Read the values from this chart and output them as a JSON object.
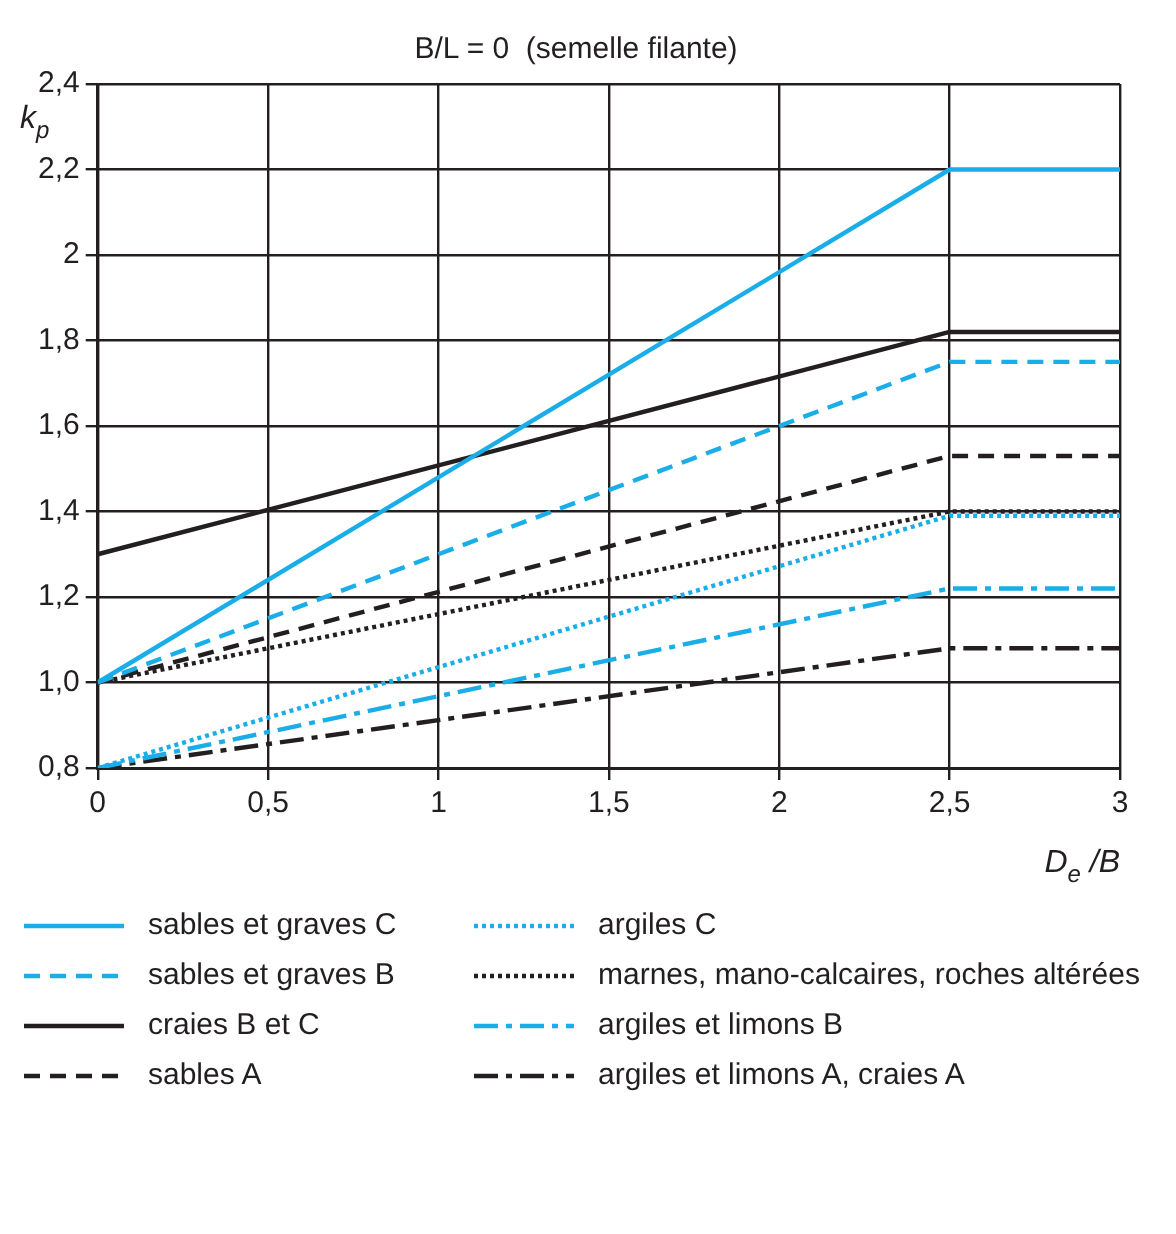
{
  "chart_data": {
    "type": "line",
    "title": "B/L = 0  (semelle filante)",
    "xlabel": "D$_{e}$ /B",
    "ylabel": "k$_{p}$",
    "x": [
      0,
      2.5,
      3
    ],
    "series": [
      {
        "name": "sables et graves C",
        "color": "#1aaee8",
        "line_style": "solid",
        "values": [
          1.0,
          2.2,
          2.2
        ]
      },
      {
        "name": "argiles C",
        "color": "#1aaee8",
        "line_style": "dotted",
        "values": [
          0.8,
          1.39,
          1.39
        ]
      },
      {
        "name": "sables et graves B",
        "color": "#1aaee8",
        "line_style": "dashed",
        "values": [
          1.0,
          1.75,
          1.75
        ]
      },
      {
        "name": "marnes, mano-calcaires, roches altérées",
        "color": "#231f20",
        "line_style": "dotted",
        "values": [
          1.0,
          1.4,
          1.4
        ]
      },
      {
        "name": "craies B et C",
        "color": "#231f20",
        "line_style": "solid",
        "values": [
          1.3,
          1.82,
          1.82
        ]
      },
      {
        "name": "argiles et limons B",
        "color": "#1aaee8",
        "line_style": "dashdot",
        "values": [
          0.8,
          1.22,
          1.22
        ]
      },
      {
        "name": "sables A",
        "color": "#231f20",
        "line_style": "dashed",
        "values": [
          1.0,
          1.53,
          1.53
        ]
      },
      {
        "name": "argiles et limons A, craies A",
        "color": "#231f20",
        "line_style": "dashdot",
        "values": [
          0.8,
          1.08,
          1.08
        ]
      }
    ],
    "xlim": [
      0,
      3
    ],
    "xticks": [
      0,
      {
        "value": 0.5,
        "label": "0,5"
      },
      1,
      {
        "value": 1.5,
        "label": "1,5"
      },
      2,
      {
        "value": 2.5,
        "label": "2,5"
      },
      3
    ],
    "ylim": [
      0.8,
      2.4
    ],
    "yticks": [
      {
        "value": 0.8,
        "label": "0,8"
      },
      {
        "value": 1.0,
        "label": "1,0"
      },
      {
        "value": 1.2,
        "label": "1,2"
      },
      {
        "value": 1.4,
        "label": "1,4"
      },
      {
        "value": 1.6,
        "label": "1,6"
      },
      {
        "value": 1.8,
        "label": "1,8"
      },
      2,
      {
        "value": 2.2,
        "label": "2,2"
      },
      {
        "value": 2.4,
        "label": "2,4"
      }
    ],
    "grid": true,
    "legend": "bottom",
    "marker": "none"
  }
}
